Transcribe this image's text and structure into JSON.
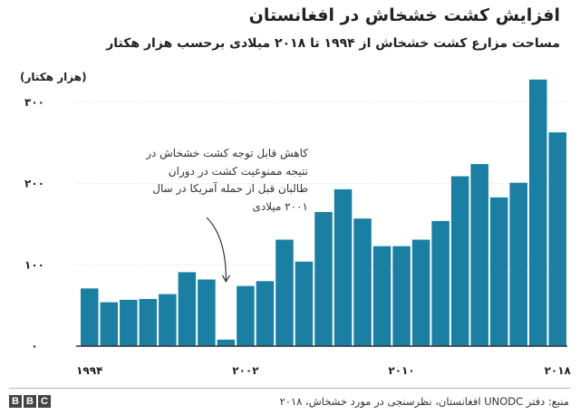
{
  "title": "افزایش کشت خشخاش در افغانستان",
  "subtitle": "مساحت مزارع کشت خشخاش از ۱۹۹۴ تا ۲۰۱۸ میلادی برحسب هزار هکتار",
  "annotation": "کاهش قابل توجه کشت خشخاش در نتیجه ممنوعیت کشت در دوران طالبان قبل از حمله آمریکا در سال ۲۰۰۱ میلادی",
  "source": "منبع: دفتر UNODC افغانستان، نظرسنجی در مورد خشخاش، ۲۰۱۸",
  "logo": [
    "B",
    "B",
    "C"
  ],
  "colors": {
    "bar": "#1a7fa3",
    "axis": "#333333",
    "grid": "#dddddd",
    "text": "#222222"
  },
  "chart_data": {
    "type": "bar",
    "title": "افزایش کشت خشخاش در افغانستان",
    "subtitle": "مساحت مزارع کشت خشخاش از ۱۹۹۴ تا ۲۰۱۸ میلادی برحسب هزار هکتار",
    "ylabel": "(هزار هکتار)",
    "categories": [
      1994,
      1995,
      1996,
      1997,
      1998,
      1999,
      2000,
      2001,
      2002,
      2003,
      2004,
      2005,
      2006,
      2007,
      2008,
      2009,
      2010,
      2011,
      2012,
      2013,
      2014,
      2015,
      2016,
      2017,
      2018
    ],
    "values": [
      71,
      54,
      57,
      58,
      64,
      91,
      82,
      8,
      74,
      80,
      131,
      104,
      165,
      193,
      157,
      123,
      123,
      131,
      154,
      209,
      224,
      183,
      201,
      328,
      263
    ],
    "xticks": [
      {
        "value": 1994,
        "label": "۱۹۹۴"
      },
      {
        "value": 2002,
        "label": "۲۰۰۲"
      },
      {
        "value": 2010,
        "label": "۲۰۱۰"
      },
      {
        "value": 2018,
        "label": "۲۰۱۸"
      }
    ],
    "yticks": [
      {
        "value": 0,
        "label": "۰"
      },
      {
        "value": 100,
        "label": "۱۰۰"
      },
      {
        "value": 200,
        "label": "۲۰۰"
      },
      {
        "value": 300,
        "label": "۳۰۰"
      }
    ],
    "ylim": [
      0,
      330
    ],
    "grid": true
  }
}
